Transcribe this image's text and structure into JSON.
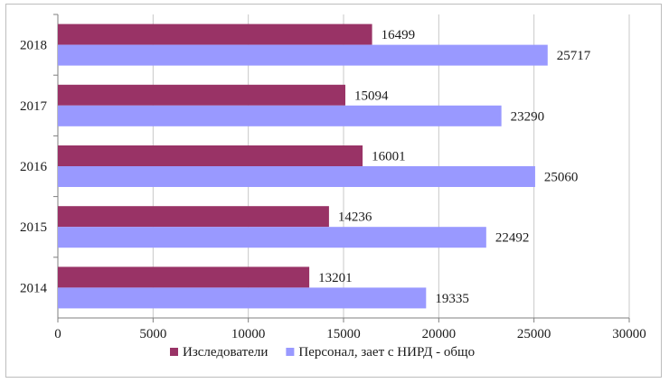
{
  "chart_data": {
    "type": "bar",
    "orientation": "horizontal",
    "categories": [
      "2014",
      "2015",
      "2016",
      "2017",
      "2018"
    ],
    "series": [
      {
        "name": "Изследователи",
        "color": "#993366",
        "values": [
          13201,
          14236,
          16001,
          15094,
          16499
        ]
      },
      {
        "name": "Персонал, зает с НИРД - общо",
        "color": "#9999ff",
        "values": [
          19335,
          22492,
          25060,
          23290,
          25717
        ]
      }
    ],
    "xlim": [
      0,
      30000
    ],
    "xticks": [
      "0",
      "5000",
      "10000",
      "15000",
      "20000",
      "25000",
      "30000"
    ],
    "grid": true,
    "legend": "bottom"
  }
}
